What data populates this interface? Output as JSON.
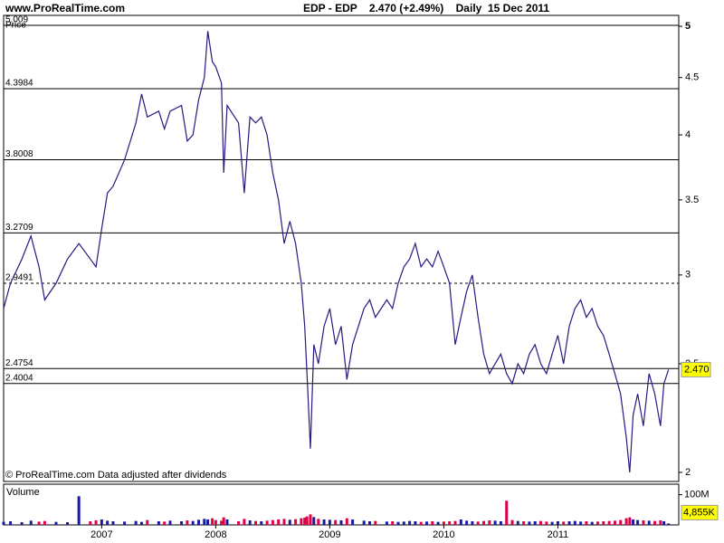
{
  "chart_data": {
    "type": "line",
    "source": "www.ProRealTime.com",
    "title": "EDP - EDP    2.470 (+2.49%)    Daily  15 Dec 2011",
    "y_label": "Price",
    "footnote": "© ProRealTime.com  Data adjusted after dividends",
    "x": [
      2006.14,
      2006.2,
      2006.3,
      2006.38,
      2006.45,
      2006.5,
      2006.6,
      2006.7,
      2006.8,
      2006.9,
      2006.95,
      2007.0,
      2007.05,
      2007.1,
      2007.2,
      2007.3,
      2007.35,
      2007.4,
      2007.5,
      2007.55,
      2007.6,
      2007.7,
      2007.75,
      2007.8,
      2007.85,
      2007.9,
      2007.93,
      2007.97,
      2008.0,
      2008.05,
      2008.07,
      2008.1,
      2008.2,
      2008.25,
      2008.3,
      2008.35,
      2008.4,
      2008.45,
      2008.5,
      2008.55,
      2008.6,
      2008.65,
      2008.7,
      2008.75,
      2008.78,
      2008.8,
      2008.83,
      2008.86,
      2008.9,
      2008.95,
      2009.0,
      2009.05,
      2009.1,
      2009.15,
      2009.2,
      2009.3,
      2009.35,
      2009.4,
      2009.5,
      2009.55,
      2009.6,
      2009.65,
      2009.7,
      2009.75,
      2009.8,
      2009.85,
      2009.9,
      2009.95,
      2010.0,
      2010.05,
      2010.1,
      2010.15,
      2010.2,
      2010.25,
      2010.3,
      2010.35,
      2010.4,
      2010.45,
      2010.5,
      2010.55,
      2010.6,
      2010.65,
      2010.7,
      2010.75,
      2010.8,
      2010.85,
      2010.9,
      2010.95,
      2011.0,
      2011.05,
      2011.1,
      2011.15,
      2011.2,
      2011.25,
      2011.3,
      2011.35,
      2011.4,
      2011.45,
      2011.5,
      2011.55,
      2011.6,
      2011.63,
      2011.66,
      2011.7,
      2011.75,
      2011.8,
      2011.85,
      2011.9,
      2011.93,
      2011.97
    ],
    "series": [
      {
        "color": "#2a1880",
        "last_label": "2.470",
        "values": [
          2.8,
          2.95,
          3.1,
          3.25,
          3.05,
          2.85,
          2.95,
          3.1,
          3.2,
          3.1,
          3.05,
          3.3,
          3.55,
          3.6,
          3.8,
          4.1,
          4.35,
          4.15,
          4.2,
          4.05,
          4.2,
          4.25,
          3.95,
          4.0,
          4.3,
          4.5,
          4.95,
          4.65,
          4.6,
          4.45,
          3.7,
          4.25,
          4.1,
          3.55,
          4.15,
          4.1,
          4.15,
          4.0,
          3.7,
          3.5,
          3.2,
          3.35,
          3.2,
          2.95,
          2.7,
          2.45,
          2.1,
          2.6,
          2.5,
          2.7,
          2.8,
          2.6,
          2.7,
          2.42,
          2.6,
          2.8,
          2.85,
          2.75,
          2.85,
          2.8,
          2.95,
          3.05,
          3.1,
          3.2,
          3.05,
          3.1,
          3.05,
          3.15,
          3.05,
          2.95,
          2.6,
          2.75,
          2.9,
          3.0,
          2.75,
          2.55,
          2.45,
          2.5,
          2.55,
          2.45,
          2.4,
          2.5,
          2.45,
          2.55,
          2.6,
          2.5,
          2.45,
          2.55,
          2.65,
          2.5,
          2.7,
          2.8,
          2.85,
          2.75,
          2.8,
          2.7,
          2.65,
          2.55,
          2.45,
          2.35,
          2.15,
          2.0,
          2.25,
          2.35,
          2.2,
          2.45,
          2.35,
          2.2,
          2.4,
          2.47
        ]
      }
    ],
    "up_color": "#1a1aa0",
    "down_color": "#e0004a",
    "yscale": "log",
    "ylim": [
      1.963,
      5.113
    ],
    "yticks": [
      2,
      2.5,
      3,
      3.5,
      4,
      4.5,
      5
    ],
    "xlim": [
      2006.14,
      2012.06
    ],
    "xticks": [
      2007,
      2008,
      2009,
      2010,
      2011
    ],
    "levels": [
      {
        "value": 5.009,
        "dashed": false
      },
      {
        "value": 4.3984,
        "dashed": false
      },
      {
        "value": 3.8008,
        "dashed": false
      },
      {
        "value": 3.2709,
        "dashed": false
      },
      {
        "value": 2.9491,
        "dashed": true
      },
      {
        "value": 2.4754,
        "dashed": false
      },
      {
        "value": 2.4004,
        "dashed": false
      }
    ],
    "volume": {
      "name": "Volume",
      "last_label": "4,855K",
      "ylim": [
        0,
        135
      ],
      "yticks": [
        {
          "value": 100,
          "label": "100M"
        }
      ],
      "values": [
        10,
        12,
        9,
        14,
        11,
        13,
        10,
        9,
        95,
        12,
        15,
        18,
        14,
        12,
        11,
        13,
        10,
        16,
        12,
        11,
        14,
        12,
        15,
        13,
        17,
        20,
        18,
        22,
        16,
        14,
        25,
        18,
        12,
        20,
        15,
        13,
        12,
        14,
        16,
        18,
        20,
        17,
        19,
        22,
        24,
        28,
        35,
        26,
        20,
        18,
        17,
        16,
        15,
        22,
        18,
        14,
        12,
        13,
        11,
        12,
        10,
        11,
        13,
        12,
        10,
        11,
        12,
        10,
        11,
        12,
        13,
        18,
        14,
        12,
        11,
        13,
        15,
        14,
        12,
        80,
        16,
        13,
        12,
        11,
        12,
        13,
        11,
        10,
        12,
        11,
        12,
        13,
        11,
        12,
        10,
        11,
        12,
        13,
        14,
        16,
        22,
        25,
        18,
        16,
        15,
        14,
        13,
        15,
        12,
        4.855
      ]
    }
  }
}
